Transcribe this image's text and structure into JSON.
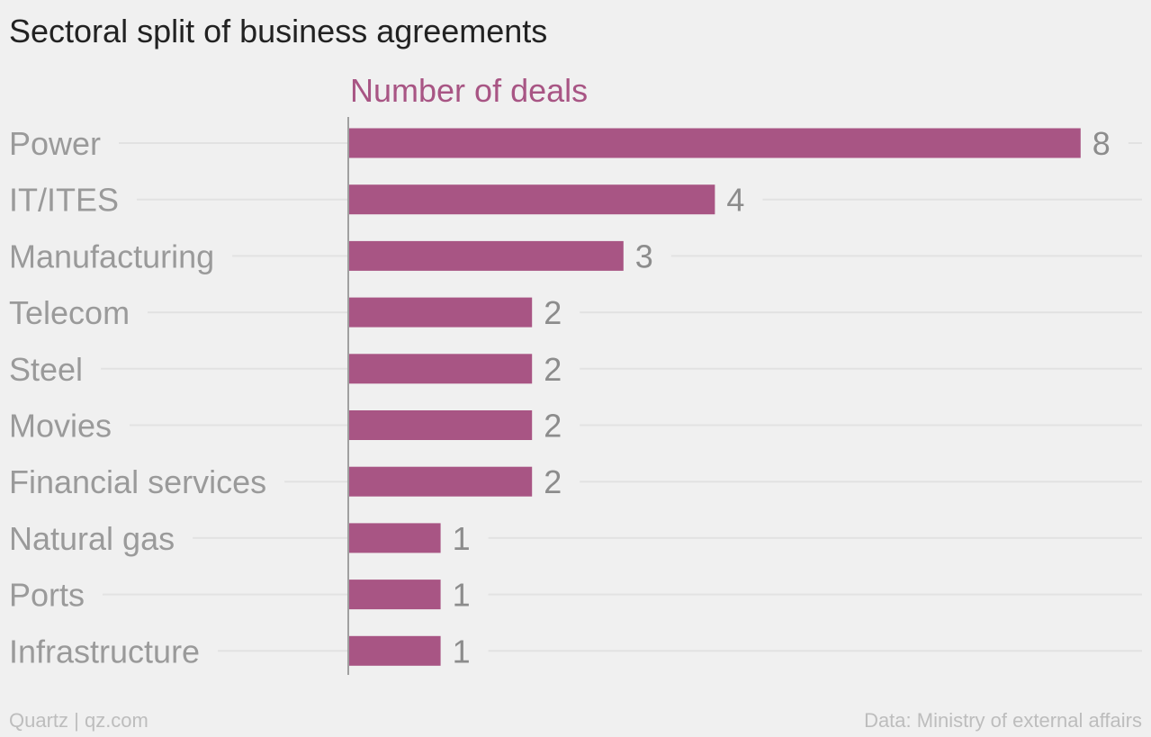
{
  "title": "Sectoral split of business agreements",
  "footer": {
    "credit": "Quartz | qz.com",
    "source": "Data: Ministry of external affairs"
  },
  "colors": {
    "bar": "#a85584",
    "series_label": "#a85584",
    "category_label": "#9a9a9a",
    "value_label": "#8c8c8c",
    "gridline": "#e2e2e2",
    "axis": "#a0a0a0"
  },
  "chart_data": {
    "type": "bar",
    "orientation": "horizontal",
    "categories": [
      "Power",
      "IT/ITES",
      "Manufacturing",
      "Telecom",
      "Steel",
      "Movies",
      "Financial services",
      "Natural gas",
      "Ports",
      "Infrastructure"
    ],
    "series": [
      {
        "name": "Number of deals",
        "values": [
          8,
          4,
          3,
          2,
          2,
          2,
          2,
          1,
          1,
          1
        ]
      }
    ],
    "data_labels": true,
    "grid": true
  }
}
